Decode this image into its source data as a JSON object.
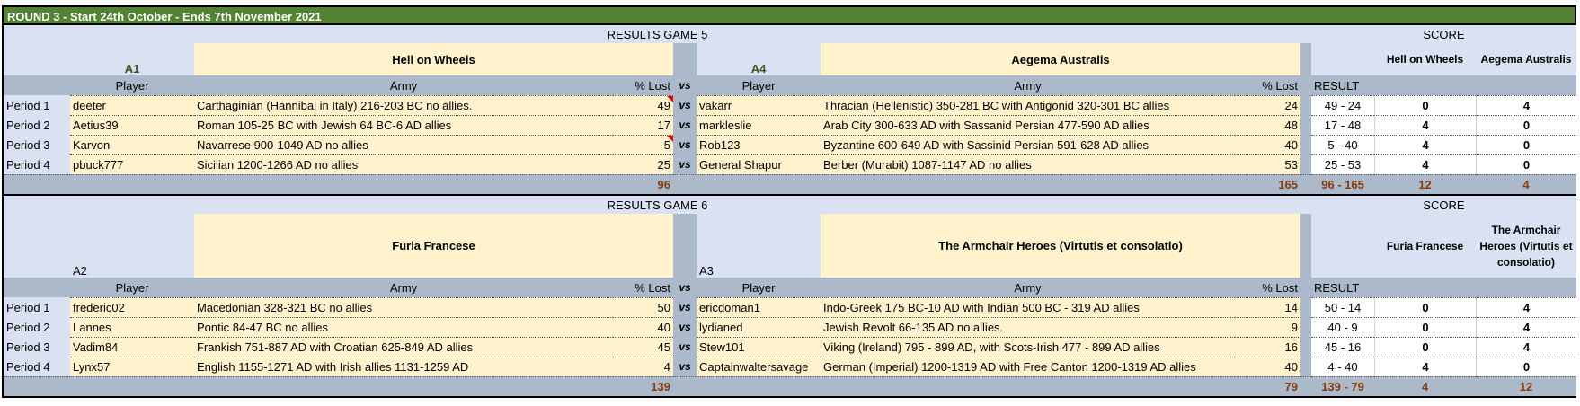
{
  "title": "ROUND 3 - Start 24th October - Ends 7th November 2021",
  "colors": {
    "header_green": "#548235",
    "light_blue": "#D9E1F2",
    "gray_blue": "#ACB9CA",
    "yellow": "#FFF2CC",
    "total_brown": "#843C0C",
    "code_green": "#375623",
    "comment_red": "#E00000"
  },
  "headers": {
    "player": "Player",
    "army": "Army",
    "lost": "% Lost",
    "vs": "vs",
    "result": "RESULT",
    "score": "SCORE"
  },
  "games": [
    {
      "title": "RESULTS GAME 5",
      "home": {
        "code": "A1",
        "team": "Hell on Wheels",
        "total": "96"
      },
      "away": {
        "code": "A4",
        "team": "Aegema Australis",
        "total": "165"
      },
      "result_total": "96 - 165",
      "score_total": [
        "12",
        "4"
      ],
      "rows": [
        {
          "period": "Period 1",
          "home_player": "deeter",
          "home_army": "Carthaginian (Hannibal in Italy) 216-203 BC no allies.",
          "home_lost": "49",
          "home_comment": true,
          "away_player": "vakarr",
          "away_army": "Thracian (Hellenistic) 350-281 BC with Antigonid 320-301 BC allies",
          "away_lost": "24",
          "result": "49 - 24",
          "score": [
            "0",
            "4"
          ]
        },
        {
          "period": "Period 2",
          "home_player": "Aetius39",
          "home_army": "Roman 105-25 BC with Jewish 64 BC-6 AD allies",
          "home_lost": "17",
          "home_comment": false,
          "away_player": "markleslie",
          "away_army": "Arab City 300-633 AD with Sassanid Persian 477-590 AD allies",
          "away_lost": "48",
          "result": "17 - 48",
          "score": [
            "4",
            "0"
          ]
        },
        {
          "period": "Period 3",
          "home_player": "Karvon",
          "home_army": "Navarrese 900-1049 AD no allies",
          "home_lost": "5",
          "home_comment": true,
          "away_player": "Rob123",
          "away_army": "Byzantine 600-649 AD with Sassinid Persian 591-628 AD allies",
          "away_lost": "40",
          "result": "5 - 40",
          "score": [
            "4",
            "0"
          ]
        },
        {
          "period": "Period 4",
          "home_player": "pbuck777",
          "home_army": "Sicilian 1200-1266 AD no allies",
          "home_lost": "25",
          "home_comment": false,
          "away_player": "General Shapur",
          "away_army": "Berber (Murabit) 1087-1147 AD no allies",
          "away_lost": "53",
          "result": "25 - 53",
          "score": [
            "4",
            "0"
          ]
        }
      ]
    },
    {
      "title": "RESULTS GAME 6",
      "home": {
        "code": "A2",
        "team": "Furia Francese",
        "total": "139"
      },
      "away": {
        "code": "A3",
        "team": "The Armchair Heroes (Virtutis et consolatio)",
        "total": "79"
      },
      "result_total": "139 - 79",
      "score_total": [
        "4",
        "12"
      ],
      "rows": [
        {
          "period": "Period 1",
          "home_player": "frederic02",
          "home_army": "Macedonian 328-321 BC no allies",
          "home_lost": "50",
          "home_comment": false,
          "away_player": "ericdoman1",
          "away_army": "Indo-Greek 175 BC-10 AD with Indian 500 BC - 319 AD allies",
          "away_lost": "14",
          "result": "50 - 14",
          "score": [
            "0",
            "4"
          ]
        },
        {
          "period": "Period 2",
          "home_player": "Lannes",
          "home_army": "Pontic 84-47 BC no allies",
          "home_lost": "40",
          "home_comment": false,
          "away_player": "lydianed",
          "away_army": "Jewish Revolt 66-135 AD no allies.",
          "away_lost": "9",
          "result": "40 - 9",
          "score": [
            "0",
            "4"
          ]
        },
        {
          "period": "Period 3",
          "home_player": "Vadim84",
          "home_army": "Frankish 751-887 AD with Croatian 625-849 AD allies",
          "home_lost": "45",
          "home_comment": false,
          "away_player": "Stew101",
          "away_army": "Viking (Ireland) 795 - 899 AD, with Scots-Irish 477 - 899 AD allies",
          "away_lost": "16",
          "result": "45 - 16",
          "score": [
            "0",
            "4"
          ]
        },
        {
          "period": "Period 4",
          "home_player": "Lynx57",
          "home_army": "English 1155-1271 AD with Irish allies 1131-1259 AD",
          "home_lost": "4",
          "home_comment": false,
          "away_player": "Captainwaltersavage",
          "away_army": "German (Imperial) 1200-1319 AD with Free Canton 1200-1319 AD allies",
          "away_lost": "40",
          "result": "4 - 40",
          "score": [
            "4",
            "0"
          ]
        }
      ]
    }
  ]
}
